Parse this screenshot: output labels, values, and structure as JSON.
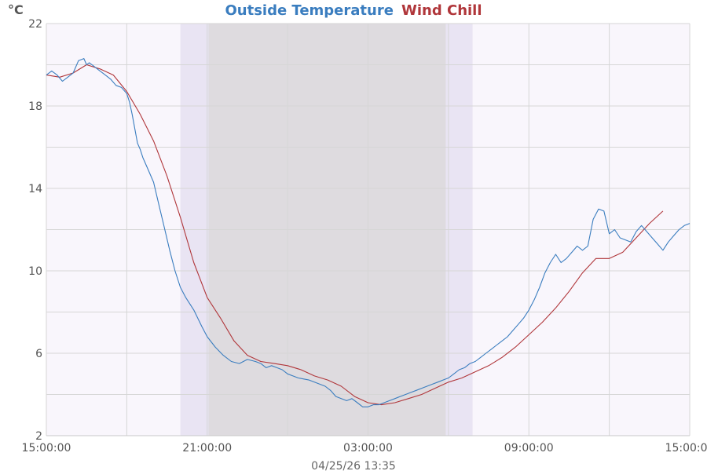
{
  "colors": {
    "plot_background": "#f9f6fc",
    "night_shade": "#dedbdf",
    "twilight": "#e9e4f3",
    "grid": "#d6d6d6",
    "temperature": "#3a7dbf",
    "wind_chill": "#b0363a"
  },
  "chart_data": {
    "type": "line",
    "title_parts": [
      "Outside Temperature",
      "Wind Chill"
    ],
    "ylabel": "°C",
    "ylim": [
      2,
      22
    ],
    "yticks": [
      2,
      6,
      10,
      14,
      18,
      22
    ],
    "xlim_hours": [
      0,
      24
    ],
    "xtick_labels": [
      "15:00:00",
      "21:00:00",
      "03:00:00",
      "09:00:00",
      "15:00:00"
    ],
    "xtick_hours": [
      0,
      6,
      12,
      18,
      24
    ],
    "night_shading_hours": {
      "twilight_start": 5.0,
      "night_start": 6.05,
      "night_end": 14.9,
      "twilight_end": 15.9
    },
    "timestamp": "04/25/26 13:35",
    "series": [
      {
        "name": "Outside Temperature",
        "color": "#3a7dbf",
        "x": [
          0.0,
          0.2,
          0.4,
          0.6,
          0.8,
          1.0,
          1.2,
          1.4,
          1.5,
          1.6,
          1.8,
          2.0,
          2.2,
          2.4,
          2.6,
          2.8,
          3.0,
          3.1,
          3.2,
          3.3,
          3.4,
          3.5,
          3.6,
          3.8,
          4.0,
          4.2,
          4.4,
          4.6,
          4.8,
          5.0,
          5.2,
          5.5,
          5.8,
          6.0,
          6.3,
          6.6,
          6.9,
          7.2,
          7.5,
          7.8,
          8.0,
          8.2,
          8.4,
          8.6,
          8.8,
          9.0,
          9.2,
          9.4,
          9.6,
          9.8,
          10.0,
          10.2,
          10.4,
          10.6,
          10.8,
          11.0,
          11.2,
          11.4,
          11.6,
          11.8,
          12.0,
          12.2,
          12.4,
          12.6,
          12.8,
          13.0,
          13.2,
          13.4,
          13.6,
          13.8,
          14.0,
          14.2,
          14.4,
          14.6,
          14.8,
          15.0,
          15.2,
          15.4,
          15.6,
          15.8,
          16.0,
          16.2,
          16.4,
          16.6,
          16.8,
          17.0,
          17.2,
          17.4,
          17.6,
          17.8,
          18.0,
          18.2,
          18.4,
          18.6,
          18.8,
          19.0,
          19.2,
          19.4,
          19.6,
          19.8,
          20.0,
          20.2,
          20.4,
          20.6,
          20.8,
          21.0,
          21.2,
          21.4,
          21.6,
          21.8,
          22.0,
          22.2,
          22.4,
          22.6,
          22.8,
          23.0,
          23.2,
          23.4,
          23.6,
          23.8,
          24.0
        ],
        "y": [
          19.5,
          19.7,
          19.5,
          19.2,
          19.4,
          19.6,
          20.2,
          20.3,
          20.0,
          20.1,
          19.9,
          19.7,
          19.5,
          19.3,
          19.0,
          18.9,
          18.6,
          18.2,
          17.6,
          16.9,
          16.2,
          15.9,
          15.5,
          14.9,
          14.3,
          13.2,
          12.1,
          11.0,
          10.0,
          9.2,
          8.7,
          8.1,
          7.3,
          6.8,
          6.3,
          5.9,
          5.6,
          5.5,
          5.7,
          5.6,
          5.5,
          5.3,
          5.4,
          5.3,
          5.2,
          5.0,
          4.9,
          4.8,
          4.75,
          4.7,
          4.6,
          4.5,
          4.4,
          4.2,
          3.9,
          3.8,
          3.7,
          3.8,
          3.6,
          3.4,
          3.4,
          3.5,
          3.5,
          3.6,
          3.7,
          3.8,
          3.9,
          4.0,
          4.1,
          4.2,
          4.3,
          4.4,
          4.5,
          4.6,
          4.7,
          4.8,
          5.0,
          5.2,
          5.3,
          5.5,
          5.6,
          5.8,
          6.0,
          6.2,
          6.4,
          6.6,
          6.8,
          7.1,
          7.4,
          7.7,
          8.1,
          8.6,
          9.2,
          9.9,
          10.4,
          10.8,
          10.4,
          10.6,
          10.9,
          11.2,
          11.0,
          11.2,
          12.5,
          13.0,
          12.9,
          11.8,
          12.0,
          11.6,
          11.5,
          11.4,
          11.9,
          12.2,
          11.9,
          11.6,
          11.3,
          11.0,
          11.4,
          11.7,
          12.0,
          12.2,
          12.3
        ],
        "x_note": "hours since 15:00:00"
      },
      {
        "name": "Wind Chill",
        "color": "#b0363a",
        "x": [
          0.0,
          0.5,
          1.0,
          1.5,
          2.0,
          2.5,
          3.0,
          3.5,
          4.0,
          4.5,
          5.0,
          5.5,
          6.0,
          6.5,
          7.0,
          7.5,
          8.0,
          8.5,
          9.0,
          9.5,
          10.0,
          10.5,
          11.0,
          11.5,
          12.0,
          12.5,
          13.0,
          13.5,
          14.0,
          14.5,
          15.0,
          15.5,
          16.0,
          16.5,
          17.0,
          17.5,
          18.0,
          18.5,
          19.0,
          19.5,
          20.0,
          20.5,
          21.0,
          21.5,
          22.0,
          22.5,
          23.0
        ],
        "y": [
          19.5,
          19.4,
          19.6,
          20.0,
          19.8,
          19.5,
          18.7,
          17.6,
          16.3,
          14.6,
          12.6,
          10.4,
          8.7,
          7.7,
          6.6,
          5.9,
          5.6,
          5.5,
          5.4,
          5.2,
          4.9,
          4.7,
          4.4,
          3.9,
          3.6,
          3.5,
          3.6,
          3.8,
          4.0,
          4.3,
          4.6,
          4.8,
          5.1,
          5.4,
          5.8,
          6.3,
          6.9,
          7.5,
          8.2,
          9.0,
          9.9,
          10.6,
          10.6,
          10.9,
          11.6,
          12.3,
          12.9
        ],
        "x_note": "hours since 15:00:00"
      }
    ]
  }
}
